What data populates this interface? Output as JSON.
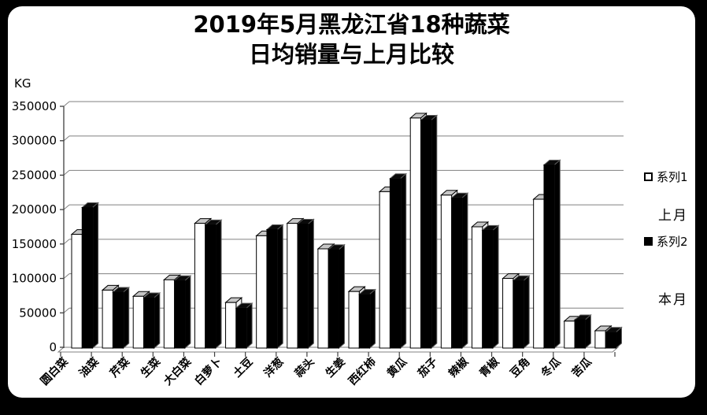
{
  "frame": {
    "background_color": "#000000",
    "panel_color": "#ffffff"
  },
  "title": {
    "line1": "2019年5月黑龙江省18种蔬菜",
    "line2": "日均销量与上月比较"
  },
  "y_axis": {
    "unit": "KG"
  },
  "legend": {
    "series1": {
      "label": "系列1",
      "marker_color": "#ffffff",
      "annotation": "上月"
    },
    "series2": {
      "label": "系列2",
      "marker_color": "#000000",
      "annotation": "本月"
    }
  },
  "chart_data": {
    "type": "bar",
    "style": "3d-clustered-column",
    "title": "2019年5月黑龙江省18种蔬菜 日均销量与上月比较",
    "xlabel": "",
    "ylabel": "KG",
    "ylim": [
      0,
      350000
    ],
    "ytick_step": 50000,
    "yticks": [
      0,
      50000,
      100000,
      150000,
      200000,
      250000,
      300000,
      350000
    ],
    "grid": true,
    "legend_position": "right",
    "categories": [
      "圆白菜",
      "油菜",
      "芹菜",
      "生菜",
      "大白菜",
      "白萝卜",
      "土豆",
      "洋葱",
      "蒜头",
      "生姜",
      "西红柿",
      "黄瓜",
      "茄子",
      "辣椒",
      "青椒",
      "豆角",
      "冬瓜",
      "苦瓜"
    ],
    "series": [
      {
        "name": "系列1",
        "meaning": "上月",
        "color": "#ffffff",
        "values": [
          164000,
          83000,
          74000,
          98000,
          180000,
          65000,
          162000,
          180000,
          143000,
          81000,
          226000,
          333000,
          221000,
          175000,
          100000,
          215000,
          38000,
          24000
        ]
      },
      {
        "name": "系列2",
        "meaning": "本月",
        "color": "#000000",
        "values": [
          203000,
          80000,
          72000,
          97000,
          178000,
          57000,
          171000,
          179000,
          142000,
          77000,
          245000,
          330000,
          217000,
          170000,
          97000,
          265000,
          40000,
          22000
        ]
      }
    ]
  }
}
